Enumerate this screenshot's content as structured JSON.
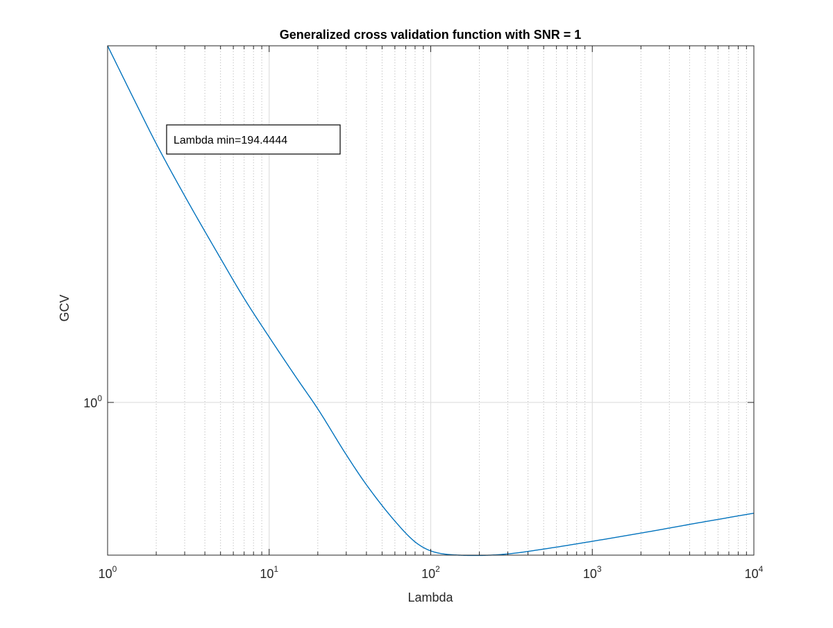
{
  "chart_data": {
    "type": "line",
    "title": "Generalized cross validation function with SNR = 1",
    "xlabel": "Lambda",
    "ylabel": "GCV",
    "xscale": "log",
    "yscale": "log",
    "xlim": [
      1,
      10000
    ],
    "ylim": [
      0.7,
      2.3
    ],
    "x_ticks": [
      {
        "base": "10",
        "exp": "0",
        "value": 1
      },
      {
        "base": "10",
        "exp": "1",
        "value": 10
      },
      {
        "base": "10",
        "exp": "2",
        "value": 100
      },
      {
        "base": "10",
        "exp": "3",
        "value": 1000
      },
      {
        "base": "10",
        "exp": "4",
        "value": 10000
      }
    ],
    "y_ticks": [
      {
        "base": "10",
        "exp": "0",
        "value": 1
      }
    ],
    "grid": true,
    "minor_grid_x": true,
    "line_color": "#0072BD",
    "series": [
      {
        "x": [
          1,
          1.5,
          2,
          3,
          5,
          7,
          10,
          15,
          20,
          30,
          40,
          60,
          80,
          100,
          150,
          194.4444,
          300,
          500,
          1000,
          2000,
          5000,
          10000
        ],
        "y": [
          2.3,
          2.01,
          1.83,
          1.62,
          1.4,
          1.275,
          1.165,
          1.055,
          0.985,
          0.885,
          0.825,
          0.758,
          0.722,
          0.707,
          0.7,
          0.6995,
          0.702,
          0.71,
          0.723,
          0.737,
          0.757,
          0.772
        ]
      }
    ],
    "annotation": {
      "text": "Lambda min=194.4444"
    }
  }
}
